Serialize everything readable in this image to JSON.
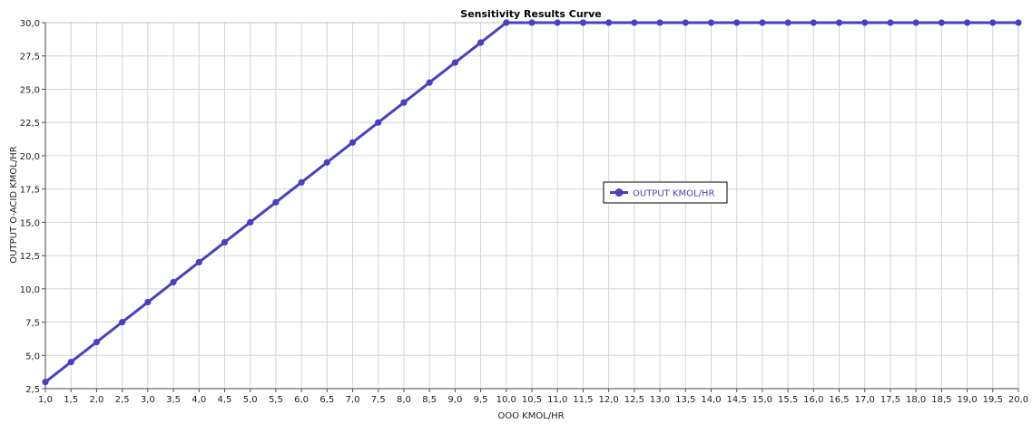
{
  "chart_data": {
    "type": "line",
    "title": "Sensitivity Results Curve",
    "xlabel": "OOO KMOL/HR",
    "ylabel": "OUTPUT O-ACID KMOL/HR",
    "xlim": [
      1.0,
      20.0
    ],
    "ylim": [
      2.5,
      30.0
    ],
    "x_ticks": [
      "1,0",
      "1,5",
      "2,0",
      "2,5",
      "3,0",
      "3,5",
      "4,0",
      "4,5",
      "5,0",
      "5,5",
      "6,0",
      "6,5",
      "7,0",
      "7,5",
      "8,0",
      "8,5",
      "9,0",
      "9,5",
      "10,0",
      "10,5",
      "11,0",
      "11,5",
      "12,0",
      "12,5",
      "13,0",
      "13,5",
      "14,0",
      "14,5",
      "15,0",
      "15,5",
      "16,0",
      "16,5",
      "17,0",
      "17,5",
      "18,0",
      "18,5",
      "19,0",
      "19,5",
      "20,0"
    ],
    "y_ticks": [
      "2,5",
      "5,0",
      "7,5",
      "10,0",
      "12,5",
      "15,0",
      "17,5",
      "20,0",
      "22,5",
      "25,0",
      "27,5",
      "30,0"
    ],
    "grid": true,
    "legend_position": "right-center",
    "series": [
      {
        "name": "OUTPUT KMOL/HR",
        "color": "#4a3fc0",
        "x": [
          1.0,
          1.5,
          2.0,
          2.5,
          3.0,
          3.5,
          4.0,
          4.5,
          5.0,
          5.5,
          6.0,
          6.5,
          7.0,
          7.5,
          8.0,
          8.5,
          9.0,
          9.5,
          10.0,
          10.5,
          11.0,
          11.5,
          12.0,
          12.5,
          13.0,
          13.5,
          14.0,
          14.5,
          15.0,
          15.5,
          16.0,
          16.5,
          17.0,
          17.5,
          18.0,
          18.5,
          19.0,
          19.5,
          20.0
        ],
        "y": [
          3.0,
          4.5,
          6.0,
          7.5,
          9.0,
          10.5,
          12.0,
          13.5,
          15.0,
          16.5,
          18.0,
          19.5,
          21.0,
          22.5,
          24.0,
          25.5,
          27.0,
          28.5,
          30.0,
          30.0,
          30.0,
          30.0,
          30.0,
          30.0,
          30.0,
          30.0,
          30.0,
          30.0,
          30.0,
          30.0,
          30.0,
          30.0,
          30.0,
          30.0,
          30.0,
          30.0,
          30.0,
          30.0,
          30.0
        ]
      }
    ]
  }
}
